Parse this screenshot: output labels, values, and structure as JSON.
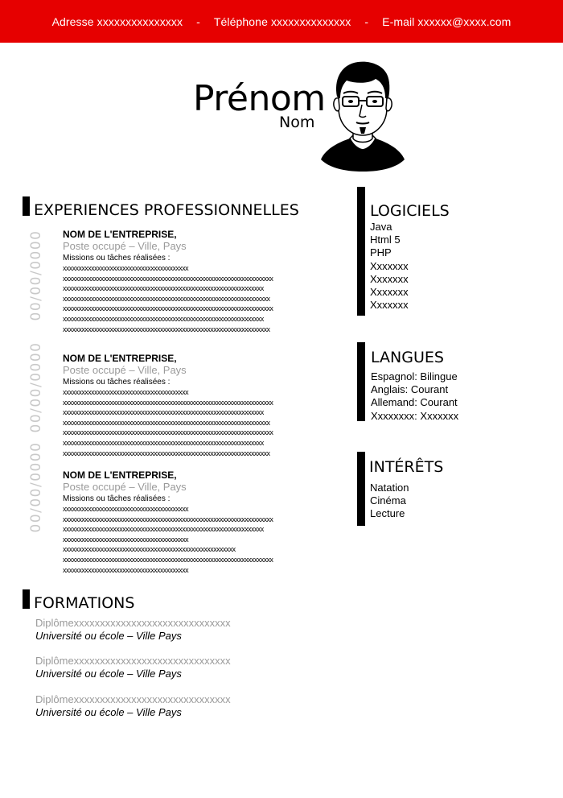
{
  "contact": {
    "address": "Adresse xxxxxxxxxxxxxxx",
    "phone": "Téléphone xxxxxxxxxxxxxx",
    "email": "E-mail xxxxxx@xxxx.com",
    "separator": "-"
  },
  "name": {
    "first": "Prénom",
    "last": "Nom"
  },
  "experiences": {
    "title": "EXPERIENCES PROFESSIONNELLES",
    "items": [
      {
        "date": "00/00/0000",
        "company": "NOM DE L'ENTREPRISE,",
        "position": "Poste occupé – Ville, Pays",
        "missions_label": "Missions ou tâches réalisées :",
        "lines": [
          "xxxxxxxxxxxxxxxxxxxxxxxxxxxxxxxxxxxxxxxx",
          "xxxxxxxxxxxxxxxxxxxxxxxxxxxxxxxxxxxxxxxxxxxxxxxxxxxxxxxxxxxxxxxxxxx",
          "xxxxxxxxxxxxxxxxxxxxxxxxxxxxxxxxxxxxxxxxxxxxxxxxxxxxxxxxxxxxxxxx",
          "xxxxxxxxxxxxxxxxxxxxxxxxxxxxxxxxxxxxxxxxxxxxxxxxxxxxxxxxxxxxxxxxxx",
          "xxxxxxxxxxxxxxxxxxxxxxxxxxxxxxxxxxxxxxxxxxxxxxxxxxxxxxxxxxxxxxxxxxx",
          "xxxxxxxxxxxxxxxxxxxxxxxxxxxxxxxxxxxxxxxxxxxxxxxxxxxxxxxxxxxxxxxx",
          "xxxxxxxxxxxxxxxxxxxxxxxxxxxxxxxxxxxxxxxxxxxxxxxxxxxxxxxxxxxxxxxxxx"
        ]
      },
      {
        "date": "00/00/0000",
        "company": "NOM DE L'ENTREPRISE,",
        "position": "Poste occupé – Ville, Pays",
        "missions_label": "Missions ou tâches réalisées :",
        "lines": [
          "xxxxxxxxxxxxxxxxxxxxxxxxxxxxxxxxxxxxxxxx",
          "xxxxxxxxxxxxxxxxxxxxxxxxxxxxxxxxxxxxxxxxxxxxxxxxxxxxxxxxxxxxxxxxxxx",
          "xxxxxxxxxxxxxxxxxxxxxxxxxxxxxxxxxxxxxxxxxxxxxxxxxxxxxxxxxxxxxxxx",
          "xxxxxxxxxxxxxxxxxxxxxxxxxxxxxxxxxxxxxxxxxxxxxxxxxxxxxxxxxxxxxxxxxx",
          "xxxxxxxxxxxxxxxxxxxxxxxxxxxxxxxxxxxxxxxxxxxxxxxxxxxxxxxxxxxxxxxxxxx",
          "xxxxxxxxxxxxxxxxxxxxxxxxxxxxxxxxxxxxxxxxxxxxxxxxxxxxxxxxxxxxxxxx",
          "xxxxxxxxxxxxxxxxxxxxxxxxxxxxxxxxxxxxxxxxxxxxxxxxxxxxxxxxxxxxxxxxxx"
        ]
      },
      {
        "date": "00/00/0000",
        "company": "NOM DE L'ENTREPRISE,",
        "position": "Poste occupé – Ville, Pays",
        "missions_label": "Missions ou tâches réalisées :",
        "lines": [
          "xxxxxxxxxxxxxxxxxxxxxxxxxxxxxxxxxxxxxxxx",
          "xxxxxxxxxxxxxxxxxxxxxxxxxxxxxxxxxxxxxxxxxxxxxxxxxxxxxxxxxxxxxxxxxxx",
          "xxxxxxxxxxxxxxxxxxxxxxxxxxxxxxxxxxxxxxxxxxxxxxxxxxxxxxxxxxxxxxxx",
          "xxxxxxxxxxxxxxxxxxxxxxxxxxxxxxxxxxxxxxxx",
          "xxxxxxxxxxxxxxxxxxxxxxxxxxxxxxxxxxxxxxxxxxxxxxxxxxxxxxx",
          "xxxxxxxxxxxxxxxxxxxxxxxxxxxxxxxxxxxxxxxxxxxxxxxxxxxxxxxxxxxxxxxxxxx",
          "xxxxxxxxxxxxxxxxxxxxxxxxxxxxxxxxxxxxxxxx"
        ]
      }
    ]
  },
  "formations": {
    "title": "FORMATIONS",
    "items": [
      {
        "degree": "Diplômexxxxxxxxxxxxxxxxxxxxxxxxxxxxxx",
        "school": "Université ou école – Ville Pays"
      },
      {
        "degree": "Diplômexxxxxxxxxxxxxxxxxxxxxxxxxxxxxx",
        "school": "Université ou école – Ville Pays"
      },
      {
        "degree": "Diplômexxxxxxxxxxxxxxxxxxxxxxxxxxxxxx",
        "school": "Université ou école – Ville Pays"
      }
    ]
  },
  "logiciels": {
    "title": "LOGICIELS",
    "items": [
      "Java",
      "Html 5",
      "PHP",
      "Xxxxxxx",
      "Xxxxxxx",
      "Xxxxxxx",
      "Xxxxxxx"
    ]
  },
  "langues": {
    "title": "LANGUES",
    "items": [
      "Espagnol: Bilingue",
      "Anglais: Courant",
      "Allemand: Courant",
      "Xxxxxxxx: Xxxxxxx"
    ]
  },
  "interets": {
    "title": "INTÉRÊTS",
    "items": [
      "Natation",
      "Cinéma",
      "Lecture"
    ]
  },
  "colors": {
    "accent": "#e60000",
    "muted": "#9a9a9a",
    "date": "#c8c8c8"
  }
}
